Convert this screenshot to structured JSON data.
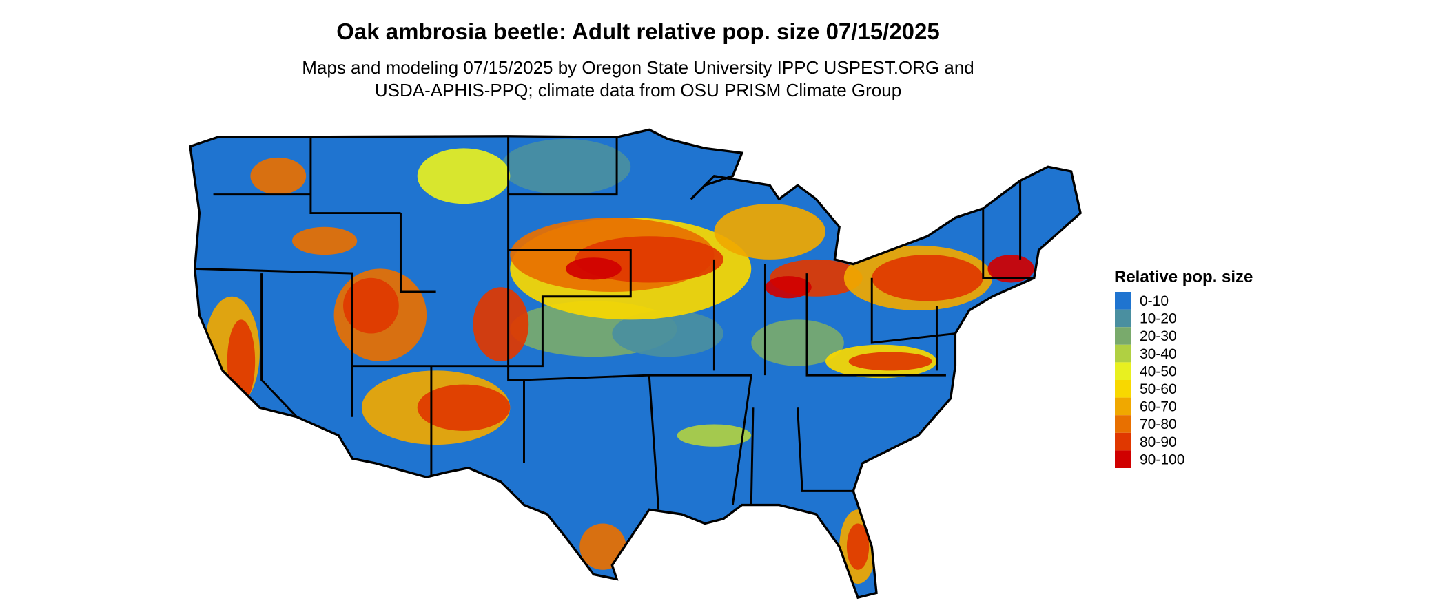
{
  "title": "Oak ambrosia beetle: Adult relative pop. size 07/15/2025",
  "subtitle": [
    "Maps and modeling 07/15/2025 by Oregon State University IPPC USPEST.ORG and",
    "USDA-APHIS-PPQ; climate data from OSU PRISM Climate Group"
  ],
  "legend": {
    "title": "Relative pop. size",
    "items": [
      {
        "label": "0-10",
        "color": "#1f74d0"
      },
      {
        "label": "10-20",
        "color": "#4a8fa0"
      },
      {
        "label": "20-30",
        "color": "#79aa6c"
      },
      {
        "label": "30-40",
        "color": "#b0d042"
      },
      {
        "label": "40-50",
        "color": "#e8f020"
      },
      {
        "label": "50-60",
        "color": "#f8d800"
      },
      {
        "label": "60-70",
        "color": "#f0a800"
      },
      {
        "label": "70-80",
        "color": "#e87000"
      },
      {
        "label": "80-90",
        "color": "#e03800"
      },
      {
        "label": "90-100",
        "color": "#d00000"
      }
    ]
  }
}
